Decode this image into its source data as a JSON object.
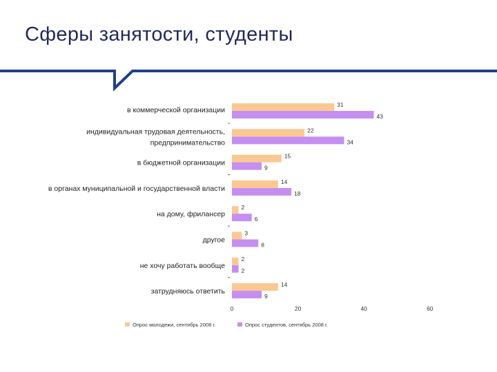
{
  "slide": {
    "title": "Сферы занятости, студенты"
  },
  "chart_data": {
    "type": "bar",
    "orientation": "horizontal",
    "categories": [
      [
        "в коммерческой организации"
      ],
      [
        "индивидуальная трудовая деятельность,",
        "предпринимательство"
      ],
      [
        "в бюджетной организации"
      ],
      [
        "в органах муниципальной и государственной власти"
      ],
      [
        "на дому, фрилансер"
      ],
      [
        "другое"
      ],
      [
        "не хочу работать вообще"
      ],
      [
        "затрудняюсь ответить"
      ]
    ],
    "series": [
      {
        "name": "Опрос молодежи, сентябрь 2008 г.",
        "color": "#fbc894",
        "values": [
          31,
          22,
          15,
          14,
          2,
          3,
          2,
          14
        ]
      },
      {
        "name": "Опрос студентов, сентябрь 2008 г.",
        "color": "#c58ff0",
        "values": [
          43,
          34,
          9,
          18,
          6,
          8,
          2,
          9
        ]
      }
    ],
    "xlim": [
      0,
      60
    ],
    "xticks": [
      0,
      20,
      40,
      60
    ],
    "legend": "bottom",
    "grid": false
  },
  "colors": {
    "title": "#1f2a5a",
    "rule": "#1f3f8f"
  }
}
